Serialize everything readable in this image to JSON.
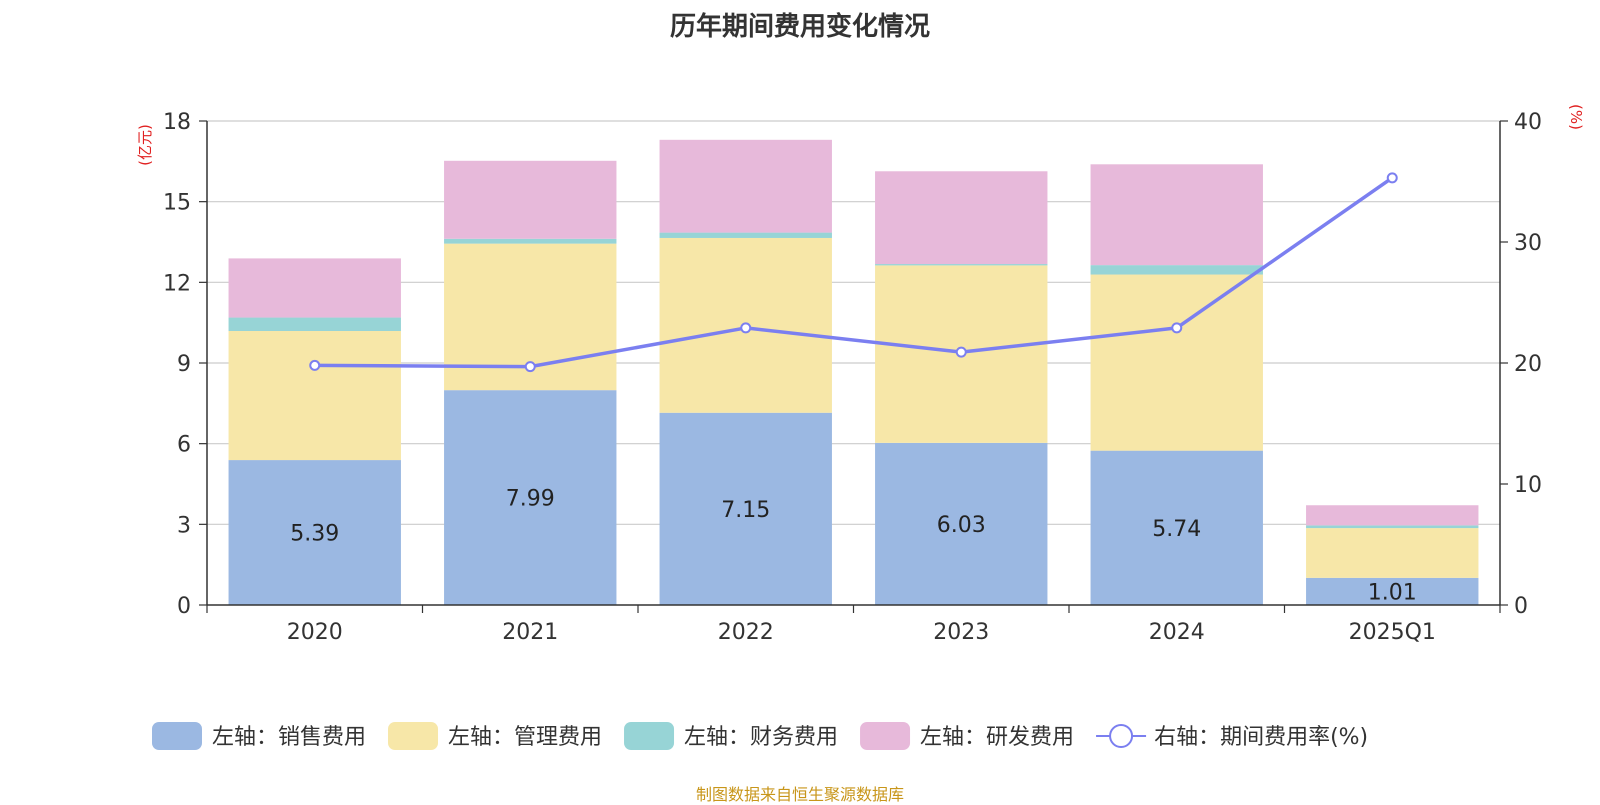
{
  "title": "历年期间费用变化情况",
  "source": "制图数据来自恒生聚源数据库",
  "chart_data": {
    "type": "bar",
    "stacked": true,
    "categories": [
      "2020",
      "2021",
      "2022",
      "2023",
      "2024",
      "2025Q1"
    ],
    "left_axis": {
      "unit": "(亿元)",
      "range": [
        0,
        18
      ],
      "ticks": [
        0,
        3,
        6,
        9,
        12,
        15,
        18
      ]
    },
    "right_axis": {
      "unit": "(%)",
      "range": [
        0,
        40
      ],
      "ticks": [
        0,
        10,
        20,
        30,
        40
      ]
    },
    "series": [
      {
        "name": "左轴：销售费用",
        "axis": "left",
        "color": "#9bb8e2",
        "values": [
          5.39,
          7.99,
          7.15,
          6.03,
          5.74,
          1.01
        ],
        "labels": [
          "5.39",
          "7.99",
          "7.15",
          "6.03",
          "5.74",
          "1.01"
        ]
      },
      {
        "name": "左轴：管理费用",
        "axis": "left",
        "color": "#f7e7a8",
        "values": [
          4.8,
          5.45,
          6.5,
          6.6,
          6.55,
          1.85
        ]
      },
      {
        "name": "左轴：财务费用",
        "axis": "left",
        "color": "#97d4d6",
        "values": [
          0.5,
          0.18,
          0.2,
          0.05,
          0.35,
          0.1
        ]
      },
      {
        "name": "左轴：研发费用",
        "axis": "left",
        "color": "#e7b9da",
        "values": [
          2.2,
          2.9,
          3.45,
          3.45,
          3.75,
          0.75
        ]
      },
      {
        "name": "右轴：期间费用率(%)",
        "axis": "right",
        "type": "line",
        "color": "#7b7ff0",
        "values": [
          19.8,
          19.7,
          22.9,
          20.9,
          22.9,
          35.3
        ]
      }
    ],
    "grid": true,
    "legend_position": "bottom"
  }
}
